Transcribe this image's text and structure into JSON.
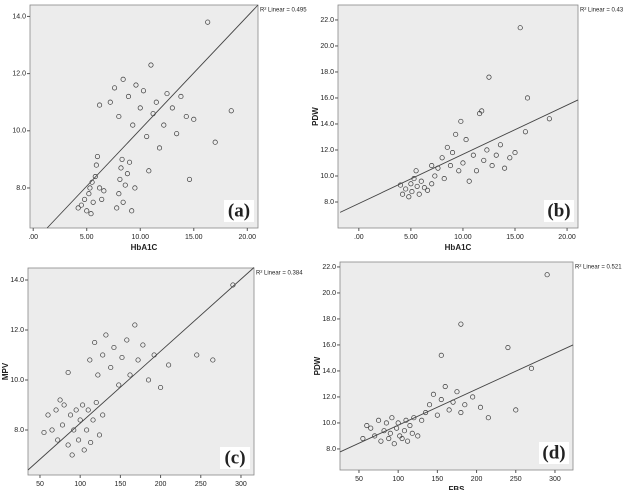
{
  "chart_data": [
    {
      "type": "scatter",
      "x_label": "HbA1C",
      "annotation": "R² Linear = 0.495",
      "panel_label": "(a)",
      "color": "#3a3a3a",
      "xlim": [
        -0.3,
        21
      ],
      "ylim": [
        6.6,
        14.4
      ],
      "xticks": [
        {
          "value": 0,
          "label": ".00"
        },
        {
          "value": 5,
          "label": "5.00"
        },
        {
          "value": 10,
          "label": "10.00"
        },
        {
          "value": 15,
          "label": "15.00"
        },
        {
          "value": 20,
          "label": "20.00"
        }
      ],
      "yticks": [
        {
          "value": 8,
          "label": "8.0"
        },
        {
          "value": 10,
          "label": "10.0"
        },
        {
          "value": 12,
          "label": "12.0"
        },
        {
          "value": 14,
          "label": "14.0"
        }
      ],
      "x": [
        4.5,
        4.8,
        5.0,
        5.2,
        5.3,
        5.5,
        5.6,
        5.8,
        5.9,
        6.0,
        6.2,
        6.4,
        6.6,
        5.4,
        4.2,
        7.8,
        8.0,
        8.1,
        8.2,
        8.3,
        8.4,
        8.6,
        8.8,
        9.0,
        9.2,
        9.5,
        7.2,
        7.6,
        8.0,
        8.4,
        8.9,
        9.3,
        9.6,
        10.0,
        10.3,
        10.6,
        11.0,
        11.2,
        11.5,
        11.8,
        12.2,
        12.5,
        13.0,
        13.4,
        13.8,
        14.3,
        15.0,
        14.6,
        6.2,
        10.8,
        16.3,
        18.5,
        17.0
      ],
      "values": [
        7.4,
        7.6,
        7.2,
        7.8,
        8.0,
        8.2,
        7.5,
        8.4,
        8.8,
        9.1,
        8.0,
        7.6,
        7.9,
        7.1,
        7.3,
        7.3,
        7.8,
        8.3,
        8.7,
        9.0,
        7.5,
        8.1,
        8.5,
        8.9,
        7.2,
        8.0,
        11.0,
        11.5,
        10.5,
        11.8,
        11.2,
        10.2,
        11.6,
        10.8,
        11.4,
        9.8,
        12.3,
        10.6,
        11.0,
        9.4,
        10.2,
        11.3,
        10.8,
        9.9,
        11.2,
        10.5,
        10.4,
        8.3,
        10.9,
        8.6,
        13.8,
        10.7,
        9.6
      ],
      "fit_line": {
        "x": [
          1.3,
          21
        ],
        "values": [
          6.6,
          14.4
        ]
      }
    },
    {
      "type": "scatter",
      "x_label": "HbA1C",
      "y_label": "PDW",
      "annotation": "R² Linear = 0.439",
      "panel_label": "(b)",
      "color": "#3a3a3a",
      "xlim": [
        -2.0,
        21.05
      ],
      "ylim": [
        6.0,
        23.15
      ],
      "xticks": [
        {
          "value": 0,
          "label": ".00"
        },
        {
          "value": 5,
          "label": "5.00"
        },
        {
          "value": 10,
          "label": "10.00"
        },
        {
          "value": 15,
          "label": "15.00"
        },
        {
          "value": 20,
          "label": "20.00"
        }
      ],
      "yticks": [
        {
          "value": 8,
          "label": "8.0"
        },
        {
          "value": 10,
          "label": "10.0"
        },
        {
          "value": 12,
          "label": "12.0"
        },
        {
          "value": 14,
          "label": "14.0"
        },
        {
          "value": 16,
          "label": "16.0"
        },
        {
          "value": 18,
          "label": "18.0"
        },
        {
          "value": 20,
          "label": "20.0"
        },
        {
          "value": 22,
          "label": "22.0"
        }
      ],
      "x": [
        4.2,
        4.5,
        4.8,
        5.0,
        5.1,
        5.3,
        5.5,
        5.6,
        5.8,
        6.0,
        6.3,
        6.6,
        4.0,
        7.0,
        7.3,
        7.6,
        8.0,
        8.2,
        8.5,
        8.8,
        9.0,
        9.3,
        9.6,
        10.0,
        10.3,
        10.6,
        11.0,
        11.3,
        11.6,
        12.0,
        12.3,
        12.8,
        13.2,
        13.6,
        14.0,
        14.5,
        15.0,
        11.8,
        9.8,
        12.5,
        15.5,
        16.2,
        18.3,
        16.0,
        7.0
      ],
      "values": [
        8.6,
        9.0,
        8.4,
        9.4,
        8.8,
        9.8,
        10.4,
        9.2,
        8.6,
        9.6,
        9.1,
        8.9,
        9.3,
        9.4,
        10.0,
        10.6,
        11.4,
        9.8,
        12.2,
        10.8,
        11.8,
        13.2,
        10.4,
        11.0,
        12.8,
        9.6,
        11.6,
        10.4,
        14.8,
        11.2,
        12.0,
        10.8,
        11.6,
        12.4,
        10.6,
        11.4,
        11.8,
        15.0,
        14.2,
        17.6,
        21.4,
        16.0,
        14.4,
        13.4,
        10.8
      ],
      "fit_line": {
        "x": [
          -1.8,
          21.05
        ],
        "values": [
          7.2,
          15.85
        ]
      }
    },
    {
      "type": "scatter",
      "x_label": "FBS",
      "y_label": "MPV",
      "annotation": "R² Linear = 0.384",
      "panel_label": "(c)",
      "color": "#3a3a3a",
      "xlim": [
        35.1,
        316.2
      ],
      "ylim": [
        6.2,
        14.48
      ],
      "xticks": [
        50,
        100,
        150,
        200,
        250,
        300
      ],
      "yticks": [
        {
          "value": 8,
          "label": "8.0"
        },
        {
          "value": 10,
          "label": "10.0"
        },
        {
          "value": 12,
          "label": "12.0"
        },
        {
          "value": 14,
          "label": "14.0"
        }
      ],
      "x": [
        60,
        65,
        70,
        72,
        78,
        80,
        85,
        88,
        90,
        92,
        95,
        98,
        100,
        103,
        105,
        108,
        110,
        113,
        116,
        120,
        124,
        128,
        55,
        75,
        112,
        118,
        122,
        128,
        132,
        138,
        142,
        148,
        152,
        158,
        162,
        168,
        172,
        178,
        185,
        192,
        200,
        210,
        85,
        245,
        265,
        290
      ],
      "values": [
        8.6,
        8.0,
        8.8,
        7.6,
        8.2,
        9.0,
        7.4,
        8.6,
        7.0,
        8.0,
        8.8,
        7.6,
        8.4,
        9.0,
        7.2,
        8.0,
        8.8,
        7.5,
        8.4,
        9.1,
        7.8,
        8.6,
        7.9,
        9.2,
        10.8,
        11.5,
        10.2,
        11.0,
        11.8,
        10.5,
        11.3,
        9.8,
        10.9,
        11.6,
        10.2,
        12.2,
        10.8,
        11.4,
        10.0,
        11.0,
        9.7,
        10.6,
        10.3,
        11.0,
        10.8,
        13.8
      ],
      "fit_line": {
        "x": [
          35.1,
          316.2
        ],
        "values": [
          6.4,
          14.5
        ]
      }
    },
    {
      "type": "scatter",
      "x_label": "FBS",
      "y_label": "PDW",
      "annotation": "R² Linear = 0.521",
      "panel_label": "(d)",
      "color": "#3a3a3a",
      "xlim": [
        25.8,
        323
      ],
      "ylim": [
        6.38,
        22.38
      ],
      "xticks": [
        50,
        100,
        150,
        200,
        250,
        300
      ],
      "yticks": [
        {
          "value": 8,
          "label": "8.0"
        },
        {
          "value": 10,
          "label": "10.0"
        },
        {
          "value": 12,
          "label": "12.0"
        },
        {
          "value": 14,
          "label": "14.0"
        },
        {
          "value": 16,
          "label": "16.0"
        },
        {
          "value": 18,
          "label": "18.0"
        },
        {
          "value": 20,
          "label": "20.0"
        },
        {
          "value": 22,
          "label": "22.0"
        }
      ],
      "x": [
        65,
        70,
        75,
        78,
        82,
        85,
        88,
        90,
        92,
        95,
        98,
        100,
        102,
        105,
        108,
        110,
        112,
        115,
        118,
        120,
        125,
        130,
        55,
        60,
        135,
        140,
        145,
        150,
        155,
        160,
        165,
        170,
        175,
        180,
        185,
        195,
        205,
        215,
        155,
        180,
        240,
        250,
        270,
        290
      ],
      "values": [
        9.6,
        9.0,
        10.2,
        8.6,
        9.4,
        10.0,
        8.8,
        9.2,
        10.4,
        8.4,
        9.6,
        10.0,
        9.0,
        8.8,
        9.4,
        10.2,
        8.6,
        9.8,
        9.2,
        10.4,
        9.0,
        10.2,
        8.8,
        9.8,
        10.8,
        11.4,
        12.2,
        10.6,
        11.8,
        12.8,
        11.0,
        11.6,
        12.4,
        10.8,
        11.4,
        12.0,
        11.2,
        10.4,
        15.2,
        17.6,
        15.8,
        11.0,
        14.2,
        21.4
      ],
      "fit_line": {
        "x": [
          25.8,
          323
        ],
        "values": [
          7.77,
          16.0
        ]
      }
    }
  ]
}
